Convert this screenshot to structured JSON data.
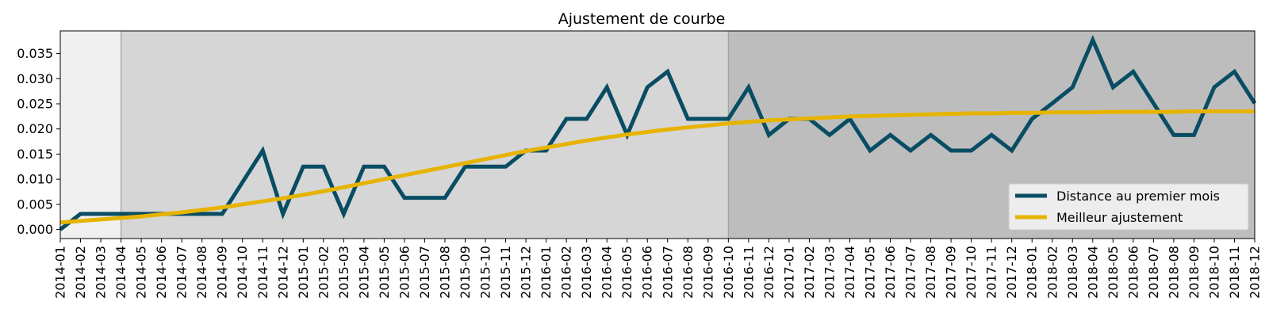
{
  "chart_data": {
    "type": "line",
    "title": "Ajustement de courbe",
    "xlabel": "",
    "ylabel": "",
    "x": [
      "2014-01",
      "2014-02",
      "2014-03",
      "2014-04",
      "2014-05",
      "2014-06",
      "2014-07",
      "2014-08",
      "2014-09",
      "2014-10",
      "2014-11",
      "2014-12",
      "2015-01",
      "2015-02",
      "2015-03",
      "2015-04",
      "2015-05",
      "2015-06",
      "2015-07",
      "2015-08",
      "2015-09",
      "2015-10",
      "2015-11",
      "2015-12",
      "2016-01",
      "2016-02",
      "2016-03",
      "2016-04",
      "2016-05",
      "2016-06",
      "2016-07",
      "2016-08",
      "2016-09",
      "2016-10",
      "2016-11",
      "2016-12",
      "2017-01",
      "2017-02",
      "2017-03",
      "2017-04",
      "2017-05",
      "2017-06",
      "2017-07",
      "2017-08",
      "2017-09",
      "2017-10",
      "2017-11",
      "2017-12",
      "2018-01",
      "2018-02",
      "2018-03",
      "2018-04",
      "2018-05",
      "2018-06",
      "2018-07",
      "2018-08",
      "2018-09",
      "2018-10",
      "2018-11",
      "2018-12"
    ],
    "yticks": [
      "0.000",
      "0.005",
      "0.010",
      "0.015",
      "0.020",
      "0.025",
      "0.030",
      "0.035"
    ],
    "ylim": [
      -0.0018,
      0.0395
    ],
    "legend_position": "lower-right",
    "grid": false,
    "shaded_regions": [
      {
        "start": "2014-01",
        "end": "2014-04",
        "color": "#f0f0f0"
      },
      {
        "start": "2014-04",
        "end": "2016-10",
        "color": "#d6d6d6"
      },
      {
        "start": "2016-10",
        "end": "2018-12",
        "color": "#bdbdbd"
      }
    ],
    "series": [
      {
        "name": "Distance au premier mois",
        "color": "#084d63",
        "values": [
          0.0,
          0.0031,
          0.0031,
          0.0031,
          0.0031,
          0.0031,
          0.0031,
          0.0031,
          0.0031,
          0.0094,
          0.0157,
          0.0031,
          0.0125,
          0.0125,
          0.0031,
          0.0125,
          0.0125,
          0.0063,
          0.0063,
          0.0063,
          0.0125,
          0.0125,
          0.0125,
          0.0157,
          0.0157,
          0.022,
          0.022,
          0.0283,
          0.0188,
          0.0283,
          0.0314,
          0.022,
          0.022,
          0.022,
          0.0283,
          0.0188,
          0.022,
          0.022,
          0.0188,
          0.022,
          0.0157,
          0.0188,
          0.0157,
          0.0188,
          0.0157,
          0.0157,
          0.0188,
          0.0157,
          0.022,
          0.0251,
          0.0283,
          0.0377,
          0.0283,
          0.0314,
          0.0251,
          0.0188,
          0.0188,
          0.0283,
          0.0314,
          0.0251
        ]
      },
      {
        "name": "Meilleur ajustement",
        "color": "#e6b400",
        "values": [
          0.0014,
          0.0017,
          0.002,
          0.0023,
          0.0026,
          0.003,
          0.0034,
          0.0039,
          0.0044,
          0.005,
          0.0056,
          0.0062,
          0.0069,
          0.0076,
          0.0084,
          0.0092,
          0.01,
          0.0108,
          0.0116,
          0.0124,
          0.0132,
          0.014,
          0.0148,
          0.0156,
          0.0163,
          0.017,
          0.0177,
          0.0183,
          0.0189,
          0.0194,
          0.0199,
          0.0203,
          0.0207,
          0.0211,
          0.0214,
          0.0217,
          0.0219,
          0.0221,
          0.0223,
          0.0225,
          0.0226,
          0.0227,
          0.0228,
          0.0229,
          0.023,
          0.0231,
          0.0231,
          0.0232,
          0.0232,
          0.0233,
          0.0233,
          0.0233,
          0.0234,
          0.0234,
          0.0234,
          0.0234,
          0.0235,
          0.0235,
          0.0235,
          0.0235
        ]
      }
    ]
  }
}
